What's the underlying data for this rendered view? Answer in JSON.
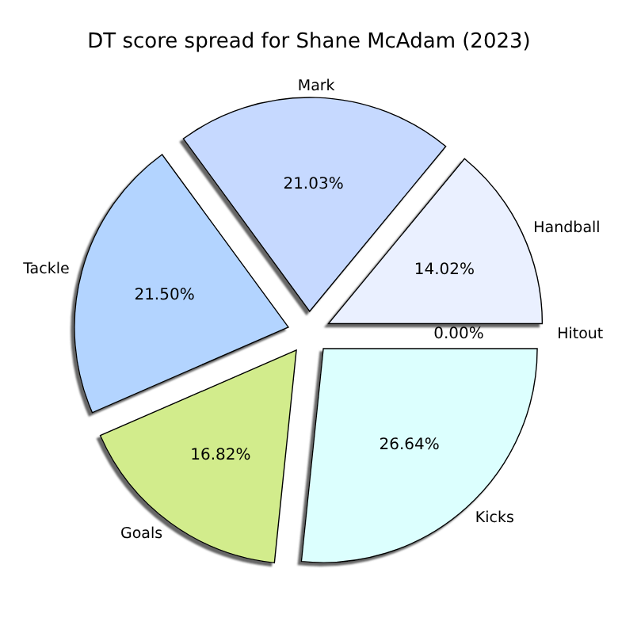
{
  "chart_data": {
    "type": "pie",
    "title": "DT score spread for Shane McAdam (2023)",
    "categories": [
      "Hitout",
      "Handball",
      "Mark",
      "Tackle",
      "Goals",
      "Kicks"
    ],
    "values": [
      0,
      14.02,
      21.03,
      21.5,
      16.82,
      26.64
    ],
    "value_labels": [
      "0.00%",
      "14.02%",
      "21.03%",
      "21.50%",
      "16.82%",
      "26.64%"
    ],
    "colors": [
      "#ffffff",
      "#eaf0ff",
      "#c6d9ff",
      "#b3d4ff",
      "#d2ec8c",
      "#dcfffe"
    ]
  }
}
